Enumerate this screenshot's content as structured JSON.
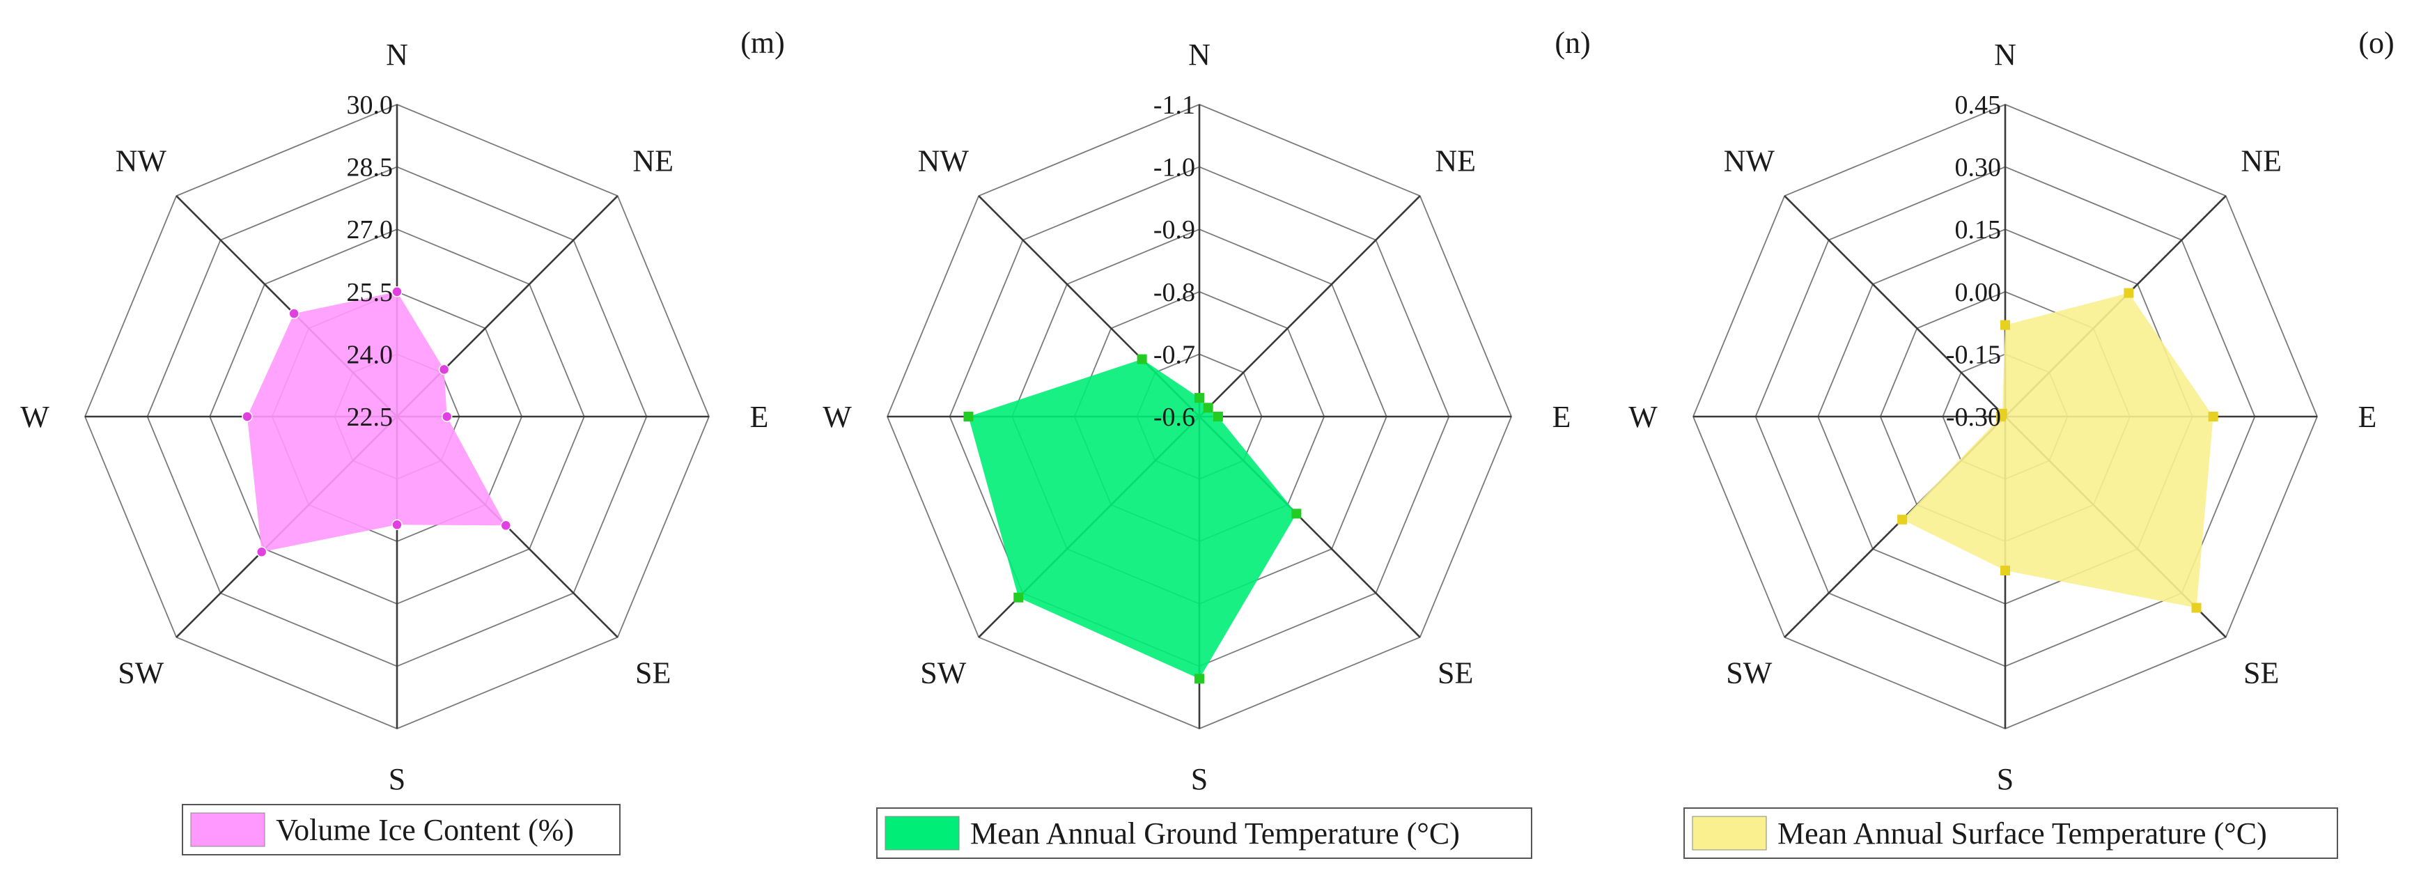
{
  "directions": [
    "N",
    "NE",
    "E",
    "SE",
    "S",
    "SW",
    "W",
    "NW"
  ],
  "chart_data": [
    {
      "type": "radar",
      "panel_label": "(m)",
      "ticks": [
        "22.5",
        "24.0",
        "25.5",
        "27.0",
        "28.5",
        "30.0"
      ],
      "rlim": [
        22.5,
        30.0
      ],
      "series": [
        {
          "name": "Volume Ice Content (%)",
          "values": [
            25.5,
            24.1,
            23.7,
            26.2,
            25.1,
            27.1,
            26.1,
            26.0
          ]
        }
      ],
      "fill": "#ff99ff",
      "marker_color": "#e040e0",
      "marker": "circle",
      "legend": "bottom"
    },
    {
      "type": "radar",
      "panel_label": "(n)",
      "ticks": [
        "-0.6",
        "-0.7",
        "-0.8",
        "-0.9",
        "-1.0",
        "-1.1"
      ],
      "rlim": [
        -0.6,
        -1.1
      ],
      "series": [
        {
          "name": "Mean Annual Ground Temperature (°C)",
          "values": [
            -0.63,
            -0.62,
            -0.63,
            -0.82,
            -1.02,
            -1.01,
            -0.97,
            -0.73
          ]
        }
      ],
      "fill": "#00ee77",
      "marker_color": "#22cc22",
      "marker": "square",
      "legend": "bottom"
    },
    {
      "type": "radar",
      "panel_label": "(o)",
      "ticks": [
        "-0.30",
        "-0.15",
        "0.00",
        "0.15",
        "0.30",
        "0.45"
      ],
      "rlim": [
        -0.3,
        0.45
      ],
      "series": [
        {
          "name": "Mean Annual Surface Temperature (°C)",
          "values": [
            -0.08,
            0.12,
            0.2,
            0.35,
            0.07,
            0.05,
            -0.29,
            -0.29
          ]
        }
      ],
      "fill": "#faf090",
      "marker_color": "#e8d020",
      "marker": "square",
      "legend": "bottom"
    }
  ]
}
